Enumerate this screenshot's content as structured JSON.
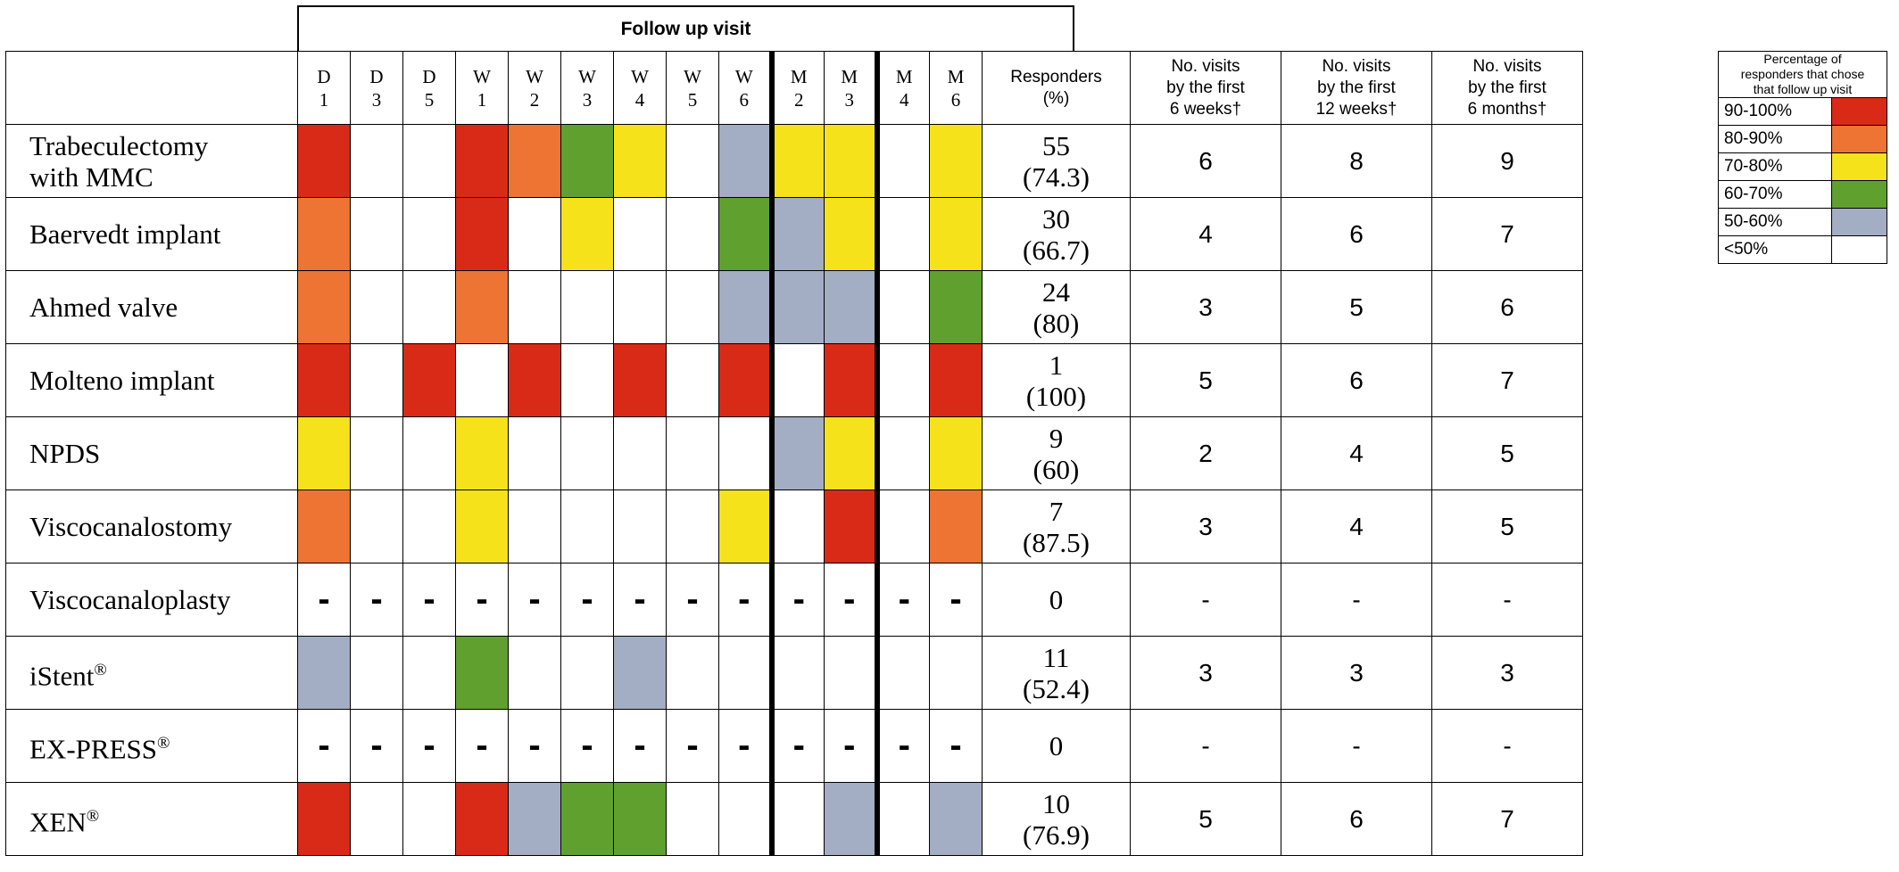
{
  "chart_data": {
    "type": "table",
    "group_header": "Follow up visit",
    "columns": [
      {
        "top": "D",
        "bottom": "1"
      },
      {
        "top": "D",
        "bottom": "3"
      },
      {
        "top": "D",
        "bottom": "5"
      },
      {
        "top": "W",
        "bottom": "1"
      },
      {
        "top": "W",
        "bottom": "2"
      },
      {
        "top": "W",
        "bottom": "3"
      },
      {
        "top": "W",
        "bottom": "4"
      },
      {
        "top": "W",
        "bottom": "5"
      },
      {
        "top": "W",
        "bottom": "6"
      },
      {
        "top": "M",
        "bottom": "2"
      },
      {
        "top": "M",
        "bottom": "3"
      },
      {
        "top": "M",
        "bottom": "4"
      },
      {
        "top": "M",
        "bottom": "6"
      }
    ],
    "extra_headers": {
      "responders": [
        "Responders",
        "(%)"
      ],
      "six_weeks": [
        "No. visits",
        "by the first",
        "6 weeks†"
      ],
      "twelve_weeks": [
        "No. visits",
        "by the first",
        "12 weeks†"
      ],
      "six_months": [
        "No. visits",
        "by the first",
        "6 months†"
      ]
    },
    "legend": {
      "title": [
        "Percentage of",
        "responders that chose",
        "that follow up visit"
      ],
      "items": [
        {
          "label": "90-100%",
          "key": "r",
          "color": "#d92a17"
        },
        {
          "label": "80-90%",
          "key": "o",
          "color": "#ed7433"
        },
        {
          "label": "70-80%",
          "key": "y",
          "color": "#f5e21a"
        },
        {
          "label": "60-70%",
          "key": "g",
          "color": "#5fa02e"
        },
        {
          "label": "50-60%",
          "key": "b",
          "color": "#a3adc4"
        },
        {
          "label": "<50%",
          "key": "w",
          "color": "#ffffff"
        }
      ]
    },
    "rows": [
      {
        "procedure": [
          "Trabeculectomy",
          "with MMC"
        ],
        "sup": "",
        "cells": [
          "r",
          "w",
          "w",
          "r",
          "o",
          "g",
          "y",
          "w",
          "b",
          "y",
          "y",
          "w",
          "y"
        ],
        "responders": [
          "55",
          "(74.3)"
        ],
        "six_weeks": "6",
        "twelve_weeks": "8",
        "six_months": "9"
      },
      {
        "procedure": [
          "Baervedt implant"
        ],
        "sup": "",
        "cells": [
          "o",
          "w",
          "w",
          "r",
          "w",
          "y",
          "w",
          "w",
          "g",
          "b",
          "y",
          "w",
          "y"
        ],
        "responders": [
          "30",
          "(66.7)"
        ],
        "six_weeks": "4",
        "twelve_weeks": "6",
        "six_months": "7"
      },
      {
        "procedure": [
          "Ahmed valve"
        ],
        "sup": "",
        "cells": [
          "o",
          "w",
          "w",
          "o",
          "w",
          "w",
          "w",
          "w",
          "b",
          "b",
          "b",
          "w",
          "g"
        ],
        "responders": [
          "24",
          "(80)"
        ],
        "six_weeks": "3",
        "twelve_weeks": "5",
        "six_months": "6"
      },
      {
        "procedure": [
          "Molteno implant"
        ],
        "sup": "",
        "cells": [
          "r",
          "w",
          "r",
          "w",
          "r",
          "w",
          "r",
          "w",
          "r",
          "w",
          "r",
          "w",
          "r"
        ],
        "responders": [
          "1",
          "(100)"
        ],
        "six_weeks": "5",
        "twelve_weeks": "6",
        "six_months": "7"
      },
      {
        "procedure": [
          "NPDS"
        ],
        "sup": "",
        "cells": [
          "y",
          "w",
          "w",
          "y",
          "w",
          "w",
          "w",
          "w",
          "w",
          "b",
          "y",
          "w",
          "y"
        ],
        "responders": [
          "9",
          "(60)"
        ],
        "six_weeks": "2",
        "twelve_weeks": "4",
        "six_months": "5"
      },
      {
        "procedure": [
          "Viscocanalostomy"
        ],
        "sup": "",
        "cells": [
          "o",
          "w",
          "w",
          "y",
          "w",
          "w",
          "w",
          "w",
          "y",
          "w",
          "r",
          "w",
          "o"
        ],
        "responders": [
          "7",
          "(87.5)"
        ],
        "six_weeks": "3",
        "twelve_weeks": "4",
        "six_months": "5"
      },
      {
        "procedure": [
          "Viscocanaloplasty"
        ],
        "sup": "",
        "cells": [
          "-",
          "-",
          "-",
          "-",
          "-",
          "-",
          "-",
          "-",
          "-",
          "-",
          "-",
          "-",
          "-"
        ],
        "responders": [
          "0"
        ],
        "six_weeks": "-",
        "twelve_weeks": "-",
        "six_months": "-"
      },
      {
        "procedure": [
          "iStent"
        ],
        "sup": "®",
        "cells": [
          "b",
          "w",
          "w",
          "g",
          "w",
          "w",
          "b",
          "w",
          "w",
          "w",
          "w",
          "w",
          "w"
        ],
        "responders": [
          "11",
          "(52.4)"
        ],
        "six_weeks": "3",
        "twelve_weeks": "3",
        "six_months": "3"
      },
      {
        "procedure": [
          "EX-PRESS"
        ],
        "sup": "®",
        "cells": [
          "-",
          "-",
          "-",
          "-",
          "-",
          "-",
          "-",
          "-",
          "-",
          "-",
          "-",
          "-",
          "-"
        ],
        "responders": [
          "0"
        ],
        "six_weeks": "-",
        "twelve_weeks": "-",
        "six_months": "-"
      },
      {
        "procedure": [
          "XEN"
        ],
        "sup": "®",
        "cells": [
          "r",
          "w",
          "w",
          "r",
          "b",
          "g",
          "g",
          "w",
          "w",
          "w",
          "b",
          "w",
          "b"
        ],
        "responders": [
          "10",
          "(76.9)"
        ],
        "six_weeks": "5",
        "twelve_weeks": "6",
        "six_months": "7"
      }
    ]
  }
}
